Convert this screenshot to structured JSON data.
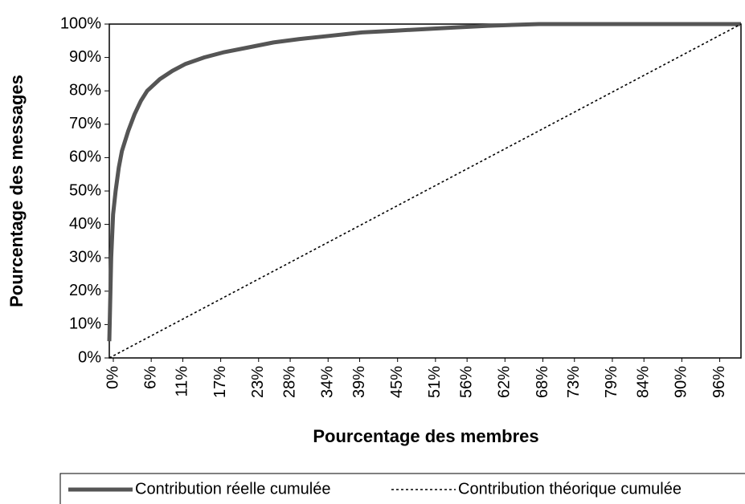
{
  "chart_data": {
    "type": "line",
    "xlabel": "Pourcentage des membres",
    "ylabel": "Pourcentage des messages",
    "xlim": [
      0,
      100
    ],
    "ylim": [
      0,
      100
    ],
    "xticks": [
      {
        "value": 0,
        "label": "0%"
      },
      {
        "value": 6,
        "label": "6%"
      },
      {
        "value": 11,
        "label": "11%"
      },
      {
        "value": 17,
        "label": "17%"
      },
      {
        "value": 23,
        "label": "23%"
      },
      {
        "value": 28,
        "label": "28%"
      },
      {
        "value": 34,
        "label": "34%"
      },
      {
        "value": 39,
        "label": "39%"
      },
      {
        "value": 45,
        "label": "45%"
      },
      {
        "value": 51,
        "label": "51%"
      },
      {
        "value": 56,
        "label": "56%"
      },
      {
        "value": 62,
        "label": "62%"
      },
      {
        "value": 68,
        "label": "68%"
      },
      {
        "value": 73,
        "label": "73%"
      },
      {
        "value": 79,
        "label": "79%"
      },
      {
        "value": 84,
        "label": "84%"
      },
      {
        "value": 90,
        "label": "90%"
      },
      {
        "value": 96,
        "label": "96%"
      }
    ],
    "yticks": [
      {
        "value": 0,
        "label": "0%"
      },
      {
        "value": 10,
        "label": "10%"
      },
      {
        "value": 20,
        "label": "20%"
      },
      {
        "value": 30,
        "label": "30%"
      },
      {
        "value": 40,
        "label": "40%"
      },
      {
        "value": 50,
        "label": "50%"
      },
      {
        "value": 60,
        "label": "60%"
      },
      {
        "value": 70,
        "label": "70%"
      },
      {
        "value": 80,
        "label": "80%"
      },
      {
        "value": 90,
        "label": "90%"
      },
      {
        "value": 100,
        "label": "100%"
      }
    ],
    "grid": false,
    "legend": "bottom",
    "series": [
      {
        "name": "Contribution réelle cumulée",
        "color": "#555555",
        "dash": "solid",
        "x": [
          0,
          0.3,
          0.6,
          1,
          1.5,
          2,
          3,
          4,
          5,
          6,
          8,
          10,
          12,
          15,
          18,
          22,
          26,
          30,
          35,
          40,
          45,
          50,
          55,
          60,
          68,
          80,
          100
        ],
        "values": [
          5,
          30,
          43,
          50,
          57,
          62,
          68,
          73,
          77,
          80,
          83.5,
          86,
          88,
          90,
          91.5,
          93,
          94.5,
          95.5,
          96.5,
          97.5,
          98,
          98.5,
          99,
          99.5,
          100,
          100,
          100
        ]
      },
      {
        "name": "Contribution théorique cumulée",
        "color": "#000000",
        "dash": "dotted",
        "x": [
          0,
          100
        ],
        "values": [
          0,
          100
        ]
      }
    ]
  }
}
